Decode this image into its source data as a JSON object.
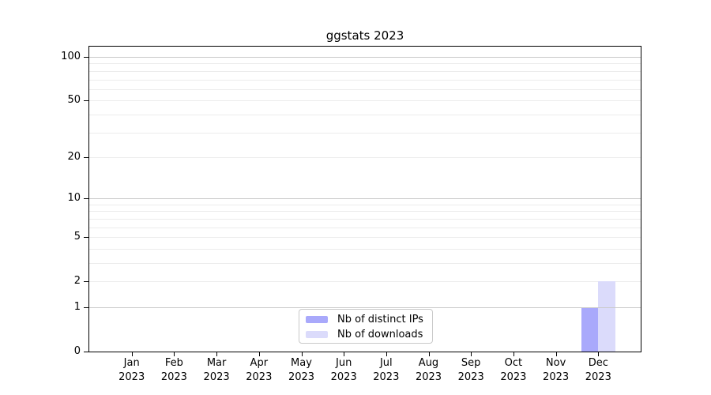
{
  "chart_data": {
    "type": "bar",
    "title": "ggstats 2023",
    "categories": [
      "Jan",
      "Feb",
      "Mar",
      "Apr",
      "May",
      "Jun",
      "Jul",
      "Aug",
      "Sep",
      "Oct",
      "Nov",
      "Dec"
    ],
    "category_year": "2023",
    "series": [
      {
        "name": "Nb of distinct IPs",
        "color": "#a9a9fb",
        "values": [
          0,
          0,
          0,
          0,
          0,
          0,
          0,
          0,
          0,
          0,
          0,
          1
        ]
      },
      {
        "name": "Nb of downloads",
        "color": "#dbdbfb",
        "values": [
          0,
          0,
          0,
          0,
          0,
          0,
          0,
          0,
          0,
          0,
          0,
          2
        ]
      }
    ],
    "y_axis": {
      "scale": "log1p",
      "tick_values": [
        0,
        1,
        2,
        5,
        10,
        20,
        50,
        100
      ],
      "tick_labels": [
        "0",
        "1",
        "2",
        "5",
        "10",
        "20",
        "50",
        "100"
      ],
      "major_gridlines": [
        1,
        10,
        100
      ],
      "minor_gridlines": [
        2,
        3,
        4,
        5,
        6,
        7,
        8,
        9,
        20,
        30,
        40,
        50,
        60,
        70,
        80,
        90
      ],
      "ylim": [
        0,
        117
      ]
    },
    "legend": {
      "position": "lower center"
    },
    "colors": {
      "major_grid": "#c9c9c9",
      "minor_grid": "#ececec",
      "axis": "#000000",
      "text": "#000000",
      "background": "#ffffff"
    }
  }
}
